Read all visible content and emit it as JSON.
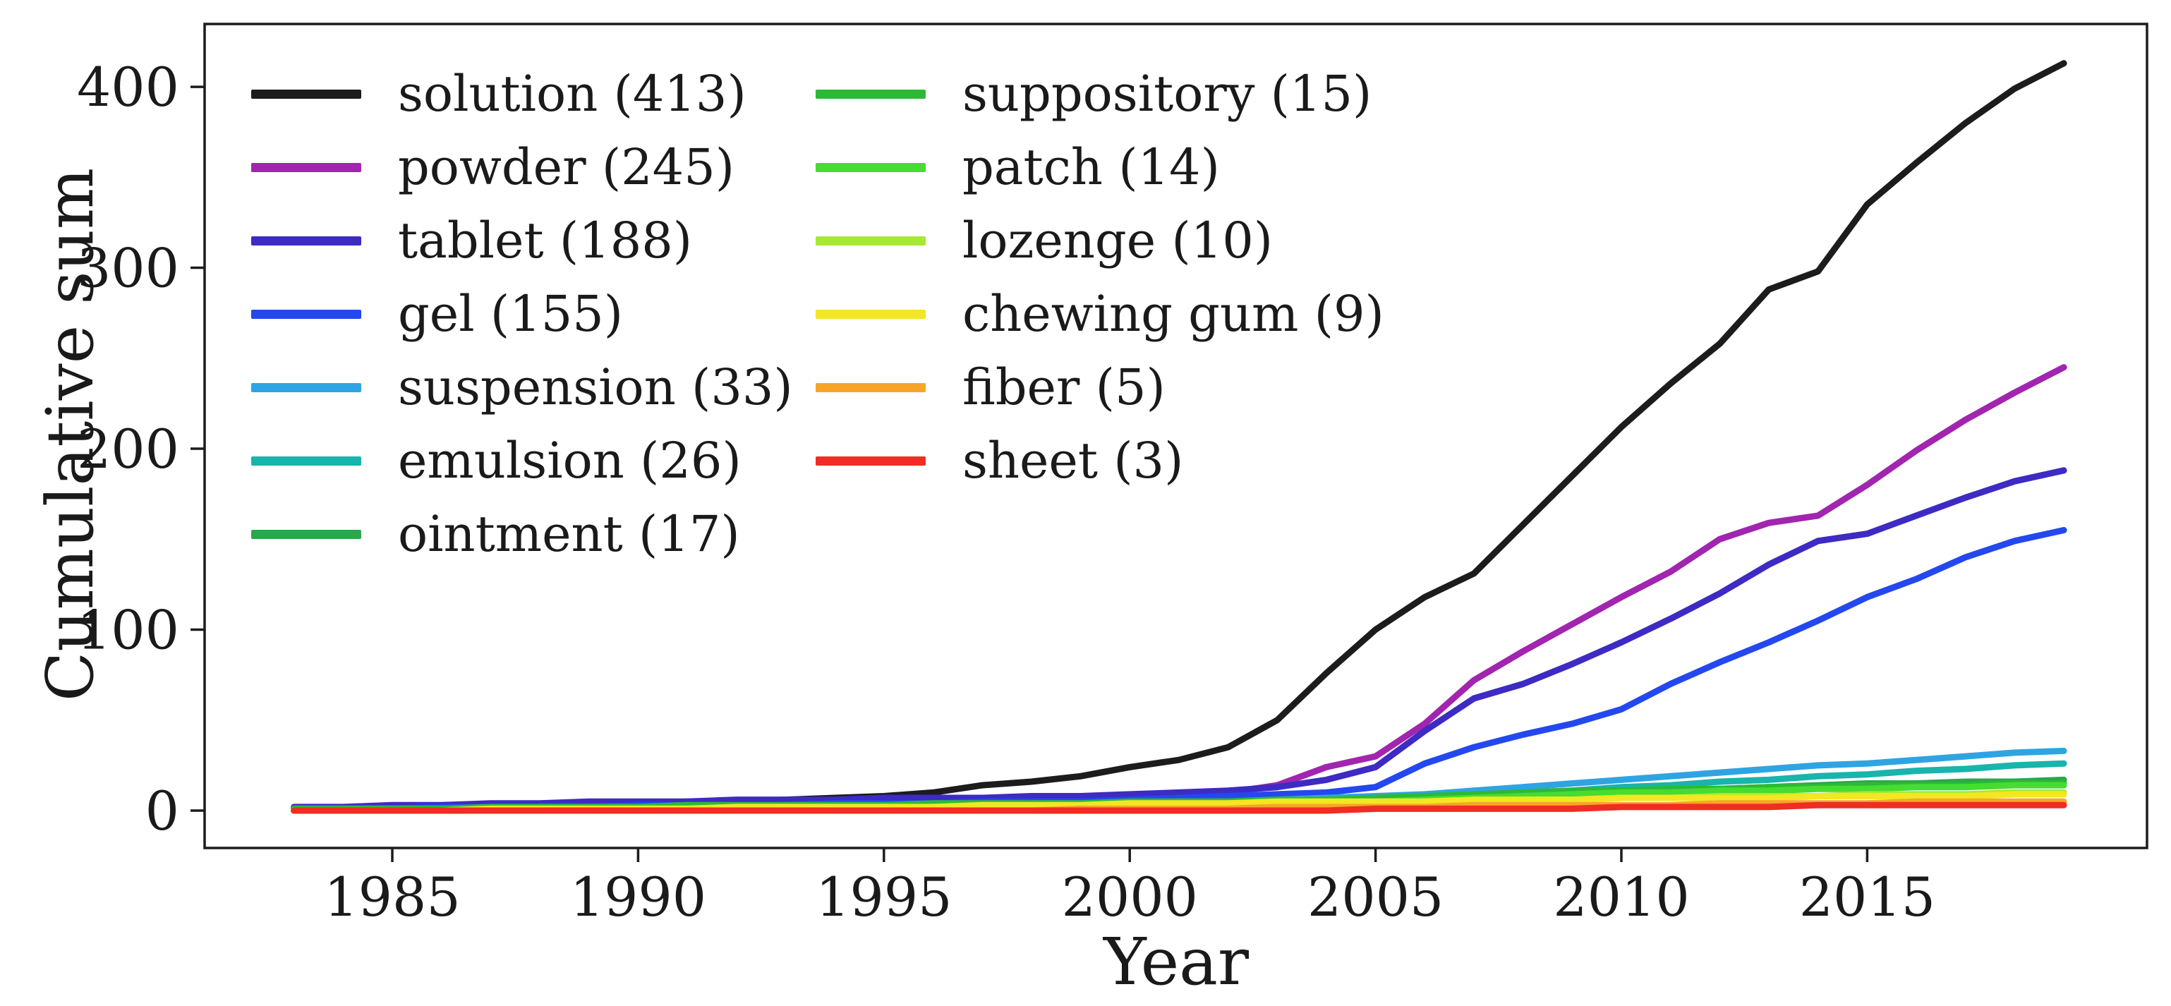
{
  "figure": {
    "background": "#ffffff",
    "text_color": "#1a1a1a",
    "spine_color": "#1c1c1c"
  },
  "chart_data": {
    "type": "line",
    "title": "",
    "xlabel": "Year",
    "ylabel": "Cumulative sum",
    "xlim": [
      1981.2,
      2020.7
    ],
    "ylim": [
      -21,
      435
    ],
    "grid": false,
    "legend_position": "upper-left-two-columns",
    "x_ticks": [
      1985,
      1990,
      1995,
      2000,
      2005,
      2010,
      2015
    ],
    "y_ticks": [
      0,
      100,
      200,
      300,
      400
    ],
    "x": [
      1983,
      1984,
      1985,
      1986,
      1987,
      1988,
      1989,
      1990,
      1991,
      1992,
      1993,
      1994,
      1995,
      1996,
      1997,
      1998,
      1999,
      2000,
      2001,
      2002,
      2003,
      2004,
      2005,
      2006,
      2007,
      2008,
      2009,
      2010,
      2011,
      2012,
      2013,
      2014,
      2015,
      2016,
      2017,
      2018,
      2019
    ],
    "series": [
      {
        "label": "solution",
        "total": 413,
        "color": "#1c1c1c",
        "values": [
          1,
          1,
          2,
          2,
          3,
          3,
          4,
          4,
          5,
          5,
          6,
          7,
          8,
          10,
          14,
          16,
          19,
          24,
          28,
          35,
          50,
          76,
          100,
          118,
          131,
          158,
          185,
          212,
          236,
          258,
          288,
          298,
          335,
          358,
          380,
          399,
          413
        ]
      },
      {
        "label": "powder",
        "total": 245,
        "color": "#a125af",
        "values": [
          1,
          1,
          1,
          1,
          2,
          2,
          2,
          2,
          3,
          3,
          3,
          3,
          4,
          4,
          4,
          5,
          5,
          6,
          8,
          10,
          14,
          24,
          30,
          48,
          72,
          88,
          103,
          118,
          132,
          150,
          159,
          163,
          180,
          199,
          216,
          231,
          245
        ]
      },
      {
        "label": "tablet",
        "total": 188,
        "color": "#3d2bc3",
        "values": [
          2,
          2,
          3,
          3,
          4,
          4,
          5,
          5,
          5,
          6,
          6,
          6,
          7,
          7,
          7,
          8,
          8,
          9,
          10,
          11,
          13,
          17,
          24,
          44,
          62,
          70,
          81,
          93,
          106,
          120,
          136,
          149,
          153,
          163,
          173,
          182,
          188
        ]
      },
      {
        "label": "gel",
        "total": 155,
        "color": "#2448ef",
        "values": [
          1,
          1,
          1,
          2,
          2,
          2,
          2,
          3,
          3,
          3,
          3,
          4,
          4,
          4,
          5,
          5,
          5,
          6,
          7,
          8,
          9,
          10,
          13,
          26,
          35,
          42,
          48,
          56,
          70,
          82,
          93,
          105,
          118,
          128,
          140,
          149,
          155
        ]
      },
      {
        "label": "suspension",
        "total": 33,
        "color": "#2fa4e2",
        "values": [
          1,
          1,
          1,
          1,
          1,
          2,
          2,
          2,
          2,
          2,
          3,
          3,
          3,
          3,
          3,
          4,
          4,
          4,
          5,
          5,
          6,
          7,
          8,
          9,
          11,
          13,
          15,
          17,
          19,
          21,
          23,
          25,
          26,
          28,
          30,
          32,
          33
        ]
      },
      {
        "label": "emulsion",
        "total": 26,
        "color": "#19b4ab",
        "values": [
          1,
          1,
          1,
          1,
          1,
          1,
          2,
          2,
          2,
          2,
          2,
          2,
          3,
          3,
          3,
          3,
          3,
          4,
          4,
          4,
          5,
          5,
          6,
          7,
          8,
          10,
          11,
          13,
          14,
          16,
          17,
          19,
          20,
          22,
          23,
          25,
          26
        ]
      },
      {
        "label": "ointment",
        "total": 17,
        "color": "#2aa84b",
        "values": [
          0,
          0,
          0,
          1,
          1,
          1,
          1,
          1,
          1,
          2,
          2,
          2,
          2,
          2,
          3,
          3,
          3,
          4,
          4,
          4,
          5,
          5,
          6,
          6,
          7,
          8,
          9,
          10,
          11,
          12,
          13,
          14,
          15,
          15,
          16,
          16,
          17
        ]
      },
      {
        "label": "suppository",
        "total": 15,
        "color": "#2cba35",
        "values": [
          1,
          1,
          1,
          1,
          2,
          2,
          2,
          2,
          3,
          3,
          3,
          3,
          3,
          4,
          4,
          4,
          4,
          5,
          5,
          5,
          6,
          6,
          7,
          8,
          9,
          10,
          11,
          11,
          12,
          12,
          13,
          13,
          14,
          14,
          14,
          15,
          15
        ]
      },
      {
        "label": "patch",
        "total": 14,
        "color": "#46dc31",
        "values": [
          0,
          0,
          0,
          0,
          0,
          0,
          0,
          0,
          0,
          1,
          1,
          1,
          1,
          1,
          1,
          1,
          1,
          2,
          2,
          3,
          3,
          4,
          5,
          6,
          7,
          8,
          9,
          10,
          10,
          11,
          11,
          12,
          12,
          13,
          13,
          14,
          14
        ]
      },
      {
        "label": "lozenge",
        "total": 10,
        "color": "#a7e833",
        "values": [
          0,
          0,
          0,
          0,
          0,
          0,
          0,
          1,
          1,
          1,
          1,
          1,
          1,
          2,
          2,
          2,
          2,
          2,
          3,
          3,
          3,
          4,
          4,
          5,
          5,
          6,
          6,
          7,
          7,
          8,
          8,
          8,
          9,
          9,
          9,
          10,
          10
        ]
      },
      {
        "label": "chewing gum",
        "total": 9,
        "color": "#f2e722",
        "values": [
          0,
          0,
          0,
          0,
          1,
          1,
          1,
          1,
          1,
          2,
          2,
          2,
          2,
          2,
          3,
          3,
          3,
          4,
          4,
          4,
          5,
          5,
          5,
          5,
          6,
          6,
          6,
          7,
          7,
          7,
          7,
          8,
          8,
          8,
          8,
          9,
          9
        ]
      },
      {
        "label": "fiber",
        "total": 5,
        "color": "#f7a529",
        "values": [
          0,
          0,
          0,
          0,
          0,
          0,
          0,
          0,
          0,
          0,
          0,
          0,
          0,
          0,
          0,
          0,
          1,
          1,
          1,
          1,
          2,
          2,
          2,
          2,
          3,
          3,
          3,
          3,
          3,
          4,
          4,
          4,
          4,
          5,
          5,
          5,
          5
        ]
      },
      {
        "label": "sheet",
        "total": 3,
        "color": "#ef2d24",
        "values": [
          0,
          0,
          0,
          0,
          0,
          0,
          0,
          0,
          0,
          0,
          0,
          0,
          0,
          0,
          0,
          0,
          0,
          0,
          0,
          0,
          0,
          0,
          1,
          1,
          1,
          1,
          1,
          2,
          2,
          2,
          2,
          3,
          3,
          3,
          3,
          3,
          3
        ]
      }
    ]
  }
}
